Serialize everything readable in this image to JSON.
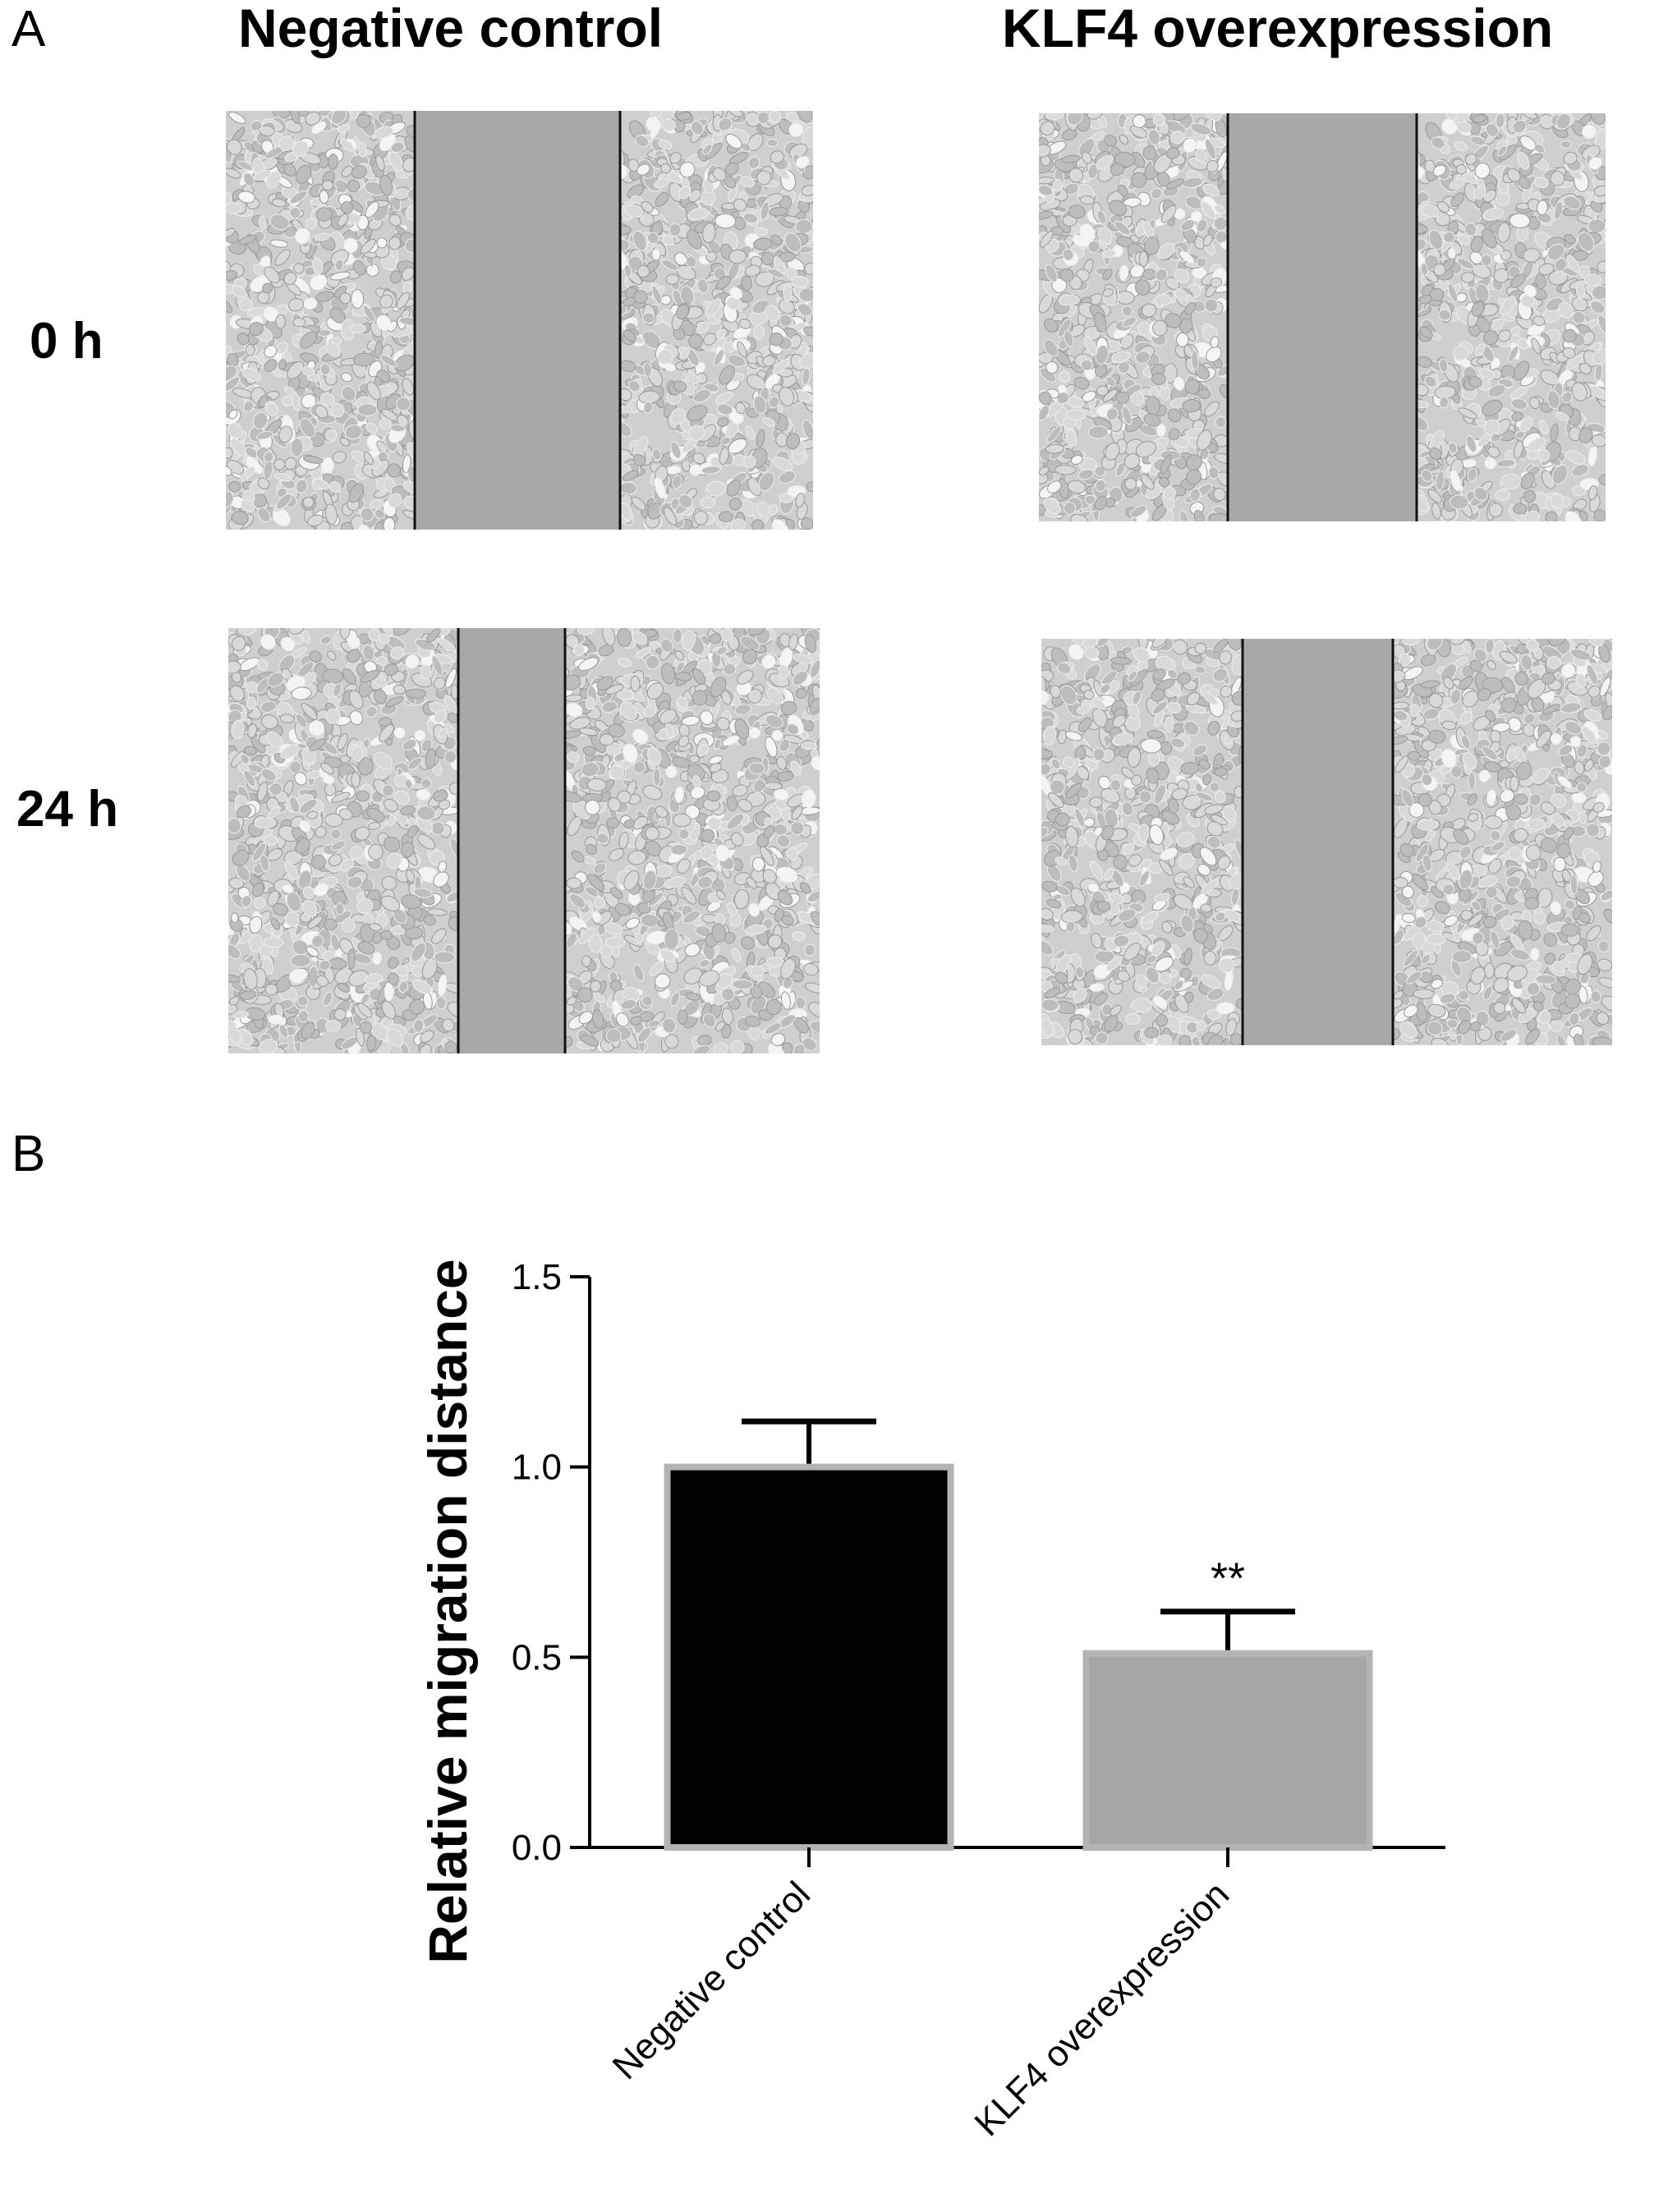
{
  "panel_a": {
    "letter": "A",
    "columns": [
      "Negative control",
      "KLF4 overexpression"
    ],
    "rows": [
      "0 h",
      "24 h"
    ]
  },
  "panel_b": {
    "letter": "B"
  },
  "colors": {
    "negative_control_bar": "#000000",
    "klf4_bar": "#a6a6a6",
    "bar_outline": "#b3b3b3",
    "wound_area": "#a8a8a8",
    "cell_area": "#cfcfcf"
  },
  "chart_data": {
    "type": "bar",
    "categories": [
      "Negative control",
      "KLF4 overexpression"
    ],
    "values": [
      1.0,
      0.51
    ],
    "errors": [
      0.12,
      0.11
    ],
    "annotations": [
      "",
      "**"
    ],
    "ylabel": "Relative migration distance",
    "ylim": [
      0,
      1.5
    ],
    "yticks": [
      0.0,
      0.5,
      1.0,
      1.5
    ],
    "ytick_labels": [
      "0.0",
      "0.5",
      "1.0",
      "1.5"
    ]
  }
}
